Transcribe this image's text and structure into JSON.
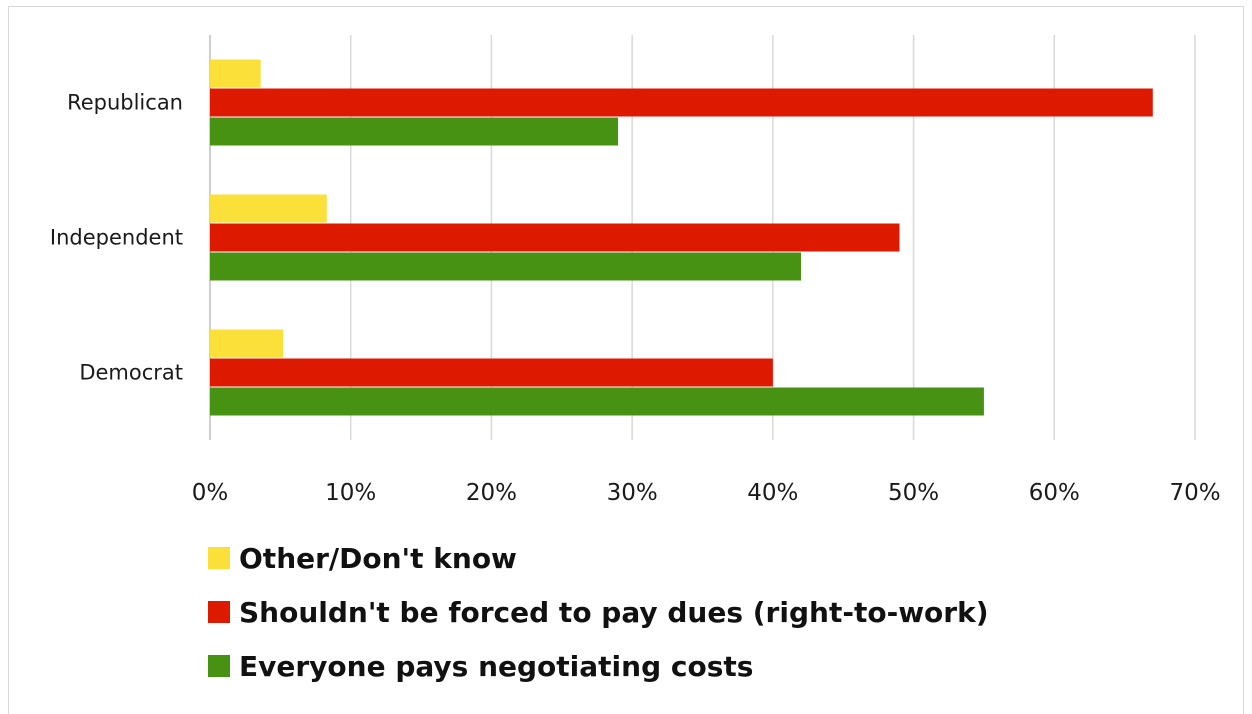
{
  "chart_data": {
    "type": "bar",
    "orientation": "horizontal",
    "categories": [
      "Republican",
      "Independent",
      "Democrat"
    ],
    "series": [
      {
        "name": "Other/Don't know",
        "color": "#fbe039",
        "values": [
          3.6,
          8.3,
          5.2
        ]
      },
      {
        "name": "Shouldn't be forced to pay dues (right-to-work)",
        "color": "#dd1a00",
        "values": [
          67,
          49,
          40
        ]
      },
      {
        "name": "Everyone pays negotiating costs",
        "color": "#479213",
        "values": [
          29,
          42,
          55
        ]
      }
    ],
    "xlim": [
      0,
      70
    ],
    "x_ticks": [
      "0%",
      "10%",
      "20%",
      "30%",
      "40%",
      "50%",
      "60%",
      "70%"
    ],
    "grid": true,
    "legend_position": "bottom"
  }
}
